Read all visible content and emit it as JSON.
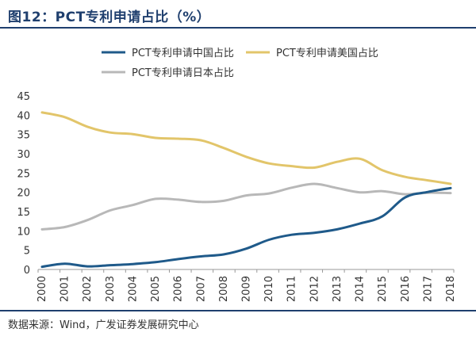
{
  "figure": {
    "title": "图12：PCT专利申请占比（%）",
    "source": "数据来源：Wind，广发证券发展研究中心"
  },
  "chart_data": {
    "type": "line",
    "title": "",
    "xlabel": "",
    "ylabel": "",
    "x": [
      "2000",
      "2001",
      "2002",
      "2003",
      "2004",
      "2005",
      "2006",
      "2007",
      "2008",
      "2009",
      "2010",
      "2011",
      "2012",
      "2013",
      "2014",
      "2015",
      "2016",
      "2017",
      "2018"
    ],
    "ylim": [
      0,
      45
    ],
    "yticks": [
      0,
      5,
      10,
      15,
      20,
      25,
      30,
      35,
      40,
      45
    ],
    "grid": false,
    "legend_position": "top",
    "series": [
      {
        "name": "PCT专利申请中国占比",
        "color": "#1f5a8a",
        "values": [
          0.7,
          1.5,
          0.8,
          1.1,
          1.4,
          1.9,
          2.7,
          3.4,
          3.9,
          5.4,
          7.7,
          9.0,
          9.5,
          10.4,
          11.9,
          13.8,
          18.7,
          20.1,
          21.1
        ]
      },
      {
        "name": "PCT专利申请美国占比",
        "color": "#e2c56a",
        "values": [
          40.7,
          39.5,
          37.0,
          35.5,
          35.1,
          34.1,
          33.9,
          33.5,
          31.5,
          29.2,
          27.5,
          26.8,
          26.4,
          27.9,
          28.7,
          25.7,
          24.0,
          23.1,
          22.2
        ]
      },
      {
        "name": "PCT专利申请日本占比",
        "color": "#b8b8b8",
        "values": [
          10.4,
          11.0,
          12.8,
          15.3,
          16.7,
          18.3,
          18.1,
          17.5,
          17.8,
          19.2,
          19.7,
          21.2,
          22.2,
          21.1,
          20.0,
          20.3,
          19.5,
          19.9,
          19.8
        ]
      }
    ]
  }
}
